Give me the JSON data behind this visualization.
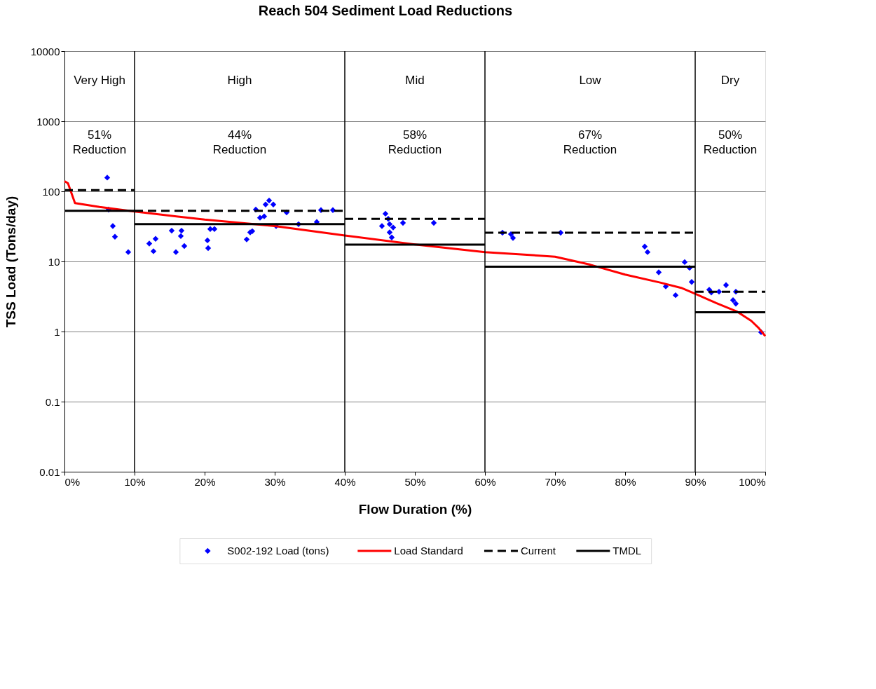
{
  "chart_data": {
    "type": "scatter",
    "title": "Reach 504 Sediment Load Reductions",
    "xlabel": "Flow Duration (%)",
    "ylabel": "TSS Load (Tons/day)",
    "xlim": [
      0,
      100
    ],
    "xticks": [
      {
        "value": 0,
        "label": "0%"
      },
      {
        "value": 10,
        "label": "10%"
      },
      {
        "value": 20,
        "label": "20%"
      },
      {
        "value": 30,
        "label": "30%"
      },
      {
        "value": 40,
        "label": "40%"
      },
      {
        "value": 50,
        "label": "50%"
      },
      {
        "value": 60,
        "label": "60%"
      },
      {
        "value": 70,
        "label": "70%"
      },
      {
        "value": 80,
        "label": "80%"
      },
      {
        "value": 90,
        "label": "90%"
      },
      {
        "value": 100,
        "label": "100%"
      }
    ],
    "ylim": [
      0.01,
      10000
    ],
    "yticks": [
      0.01,
      0.1,
      1,
      10,
      100,
      1000,
      10000
    ],
    "log": "y",
    "grid": "y",
    "legend": "bottom",
    "series": [
      {
        "name": "S002-192 Load (tons)",
        "marker": "diamond",
        "color": "#0000ff",
        "x": [
          6.1,
          6.3,
          6.9,
          7.2,
          9.1,
          12.1,
          12.7,
          13,
          15.3,
          15.9,
          16.6,
          16.7,
          17.1,
          20.4,
          20.5,
          20.8,
          21.4,
          26,
          26.5,
          26.8,
          27.3,
          27.9,
          28.5,
          28.7,
          29.2,
          29.8,
          30.2,
          31.7,
          33.4,
          36,
          36.6,
          38.3,
          45.3,
          45.8,
          46.2,
          46.4,
          46.4,
          46.7,
          46.9,
          48.3,
          52.7,
          62.5,
          63.7,
          64,
          70.8,
          82.8,
          83.2,
          84.8,
          85.8,
          87.2,
          88.5,
          89.2,
          89.5,
          92,
          92.3,
          93.4,
          94.4,
          95.4,
          95.8,
          95.8,
          99.4
        ],
        "values": [
          157,
          55,
          32,
          22.5,
          13.6,
          18,
          14,
          21,
          27.5,
          13.6,
          23,
          27.5,
          16.6,
          20,
          15.5,
          29,
          29,
          20.6,
          26,
          27,
          55,
          42,
          44,
          65,
          74,
          65,
          32,
          50,
          34,
          36.5,
          54,
          54,
          32,
          48,
          40.5,
          34,
          26,
          22,
          30.5,
          35.5,
          35.5,
          25.7,
          24.5,
          21.6,
          25.7,
          16.3,
          13.6,
          7,
          4.4,
          3.3,
          9.8,
          8.1,
          5.1,
          3.95,
          3.6,
          3.7,
          4.6,
          2.8,
          2.5,
          3.7,
          0.98
        ]
      },
      {
        "name": "Load Standard",
        "type": "line",
        "marker": "none",
        "color": "#ff0000",
        "line_style": "solid",
        "x": [
          0,
          0.5,
          1.5,
          5,
          10,
          20,
          30,
          40,
          50,
          60,
          70,
          75,
          80,
          85,
          88,
          90,
          93,
          96,
          98,
          99,
          100
        ],
        "values": [
          140,
          130,
          68,
          60,
          51.5,
          39.5,
          32,
          23.5,
          17.5,
          13.6,
          11.7,
          9,
          6.5,
          5,
          4.2,
          3.46,
          2.55,
          1.92,
          1.42,
          1.14,
          0.86
        ]
      },
      {
        "name": "Current",
        "type": "line",
        "marker": "none",
        "color": "#000000",
        "line_style": "dashed",
        "x": [
          0,
          10,
          null,
          10,
          40,
          null,
          40,
          60,
          null,
          60,
          90,
          null,
          90,
          100
        ],
        "values": [
          104,
          104,
          null,
          52.7,
          52.7,
          null,
          40.5,
          40.5,
          null,
          25.7,
          25.7,
          null,
          3.7,
          3.7
        ]
      },
      {
        "name": "TMDL",
        "type": "line",
        "marker": "none",
        "color": "#000000",
        "line_style": "solid",
        "x": [
          0,
          10,
          null,
          10,
          40,
          null,
          40,
          60,
          null,
          60,
          90,
          null,
          90,
          100
        ],
        "values": [
          52.7,
          52.7,
          null,
          34,
          34,
          null,
          17.4,
          17.4,
          null,
          8.4,
          8.4,
          null,
          1.88,
          1.88
        ]
      }
    ],
    "ref_lines": [
      {
        "axis": "x",
        "value": 10,
        "color": "#000000"
      },
      {
        "axis": "x",
        "value": 40,
        "color": "#000000"
      },
      {
        "axis": "x",
        "value": 60,
        "color": "#000000"
      },
      {
        "axis": "x",
        "value": 90,
        "color": "#000000"
      }
    ],
    "annotations": [
      "Very High",
      "High",
      "Mid",
      "Low",
      "Dry",
      "51%\nReduction",
      "44%\nReduction",
      "58%\nReduction",
      "67%\nReduction",
      "50%\nReduction"
    ]
  }
}
